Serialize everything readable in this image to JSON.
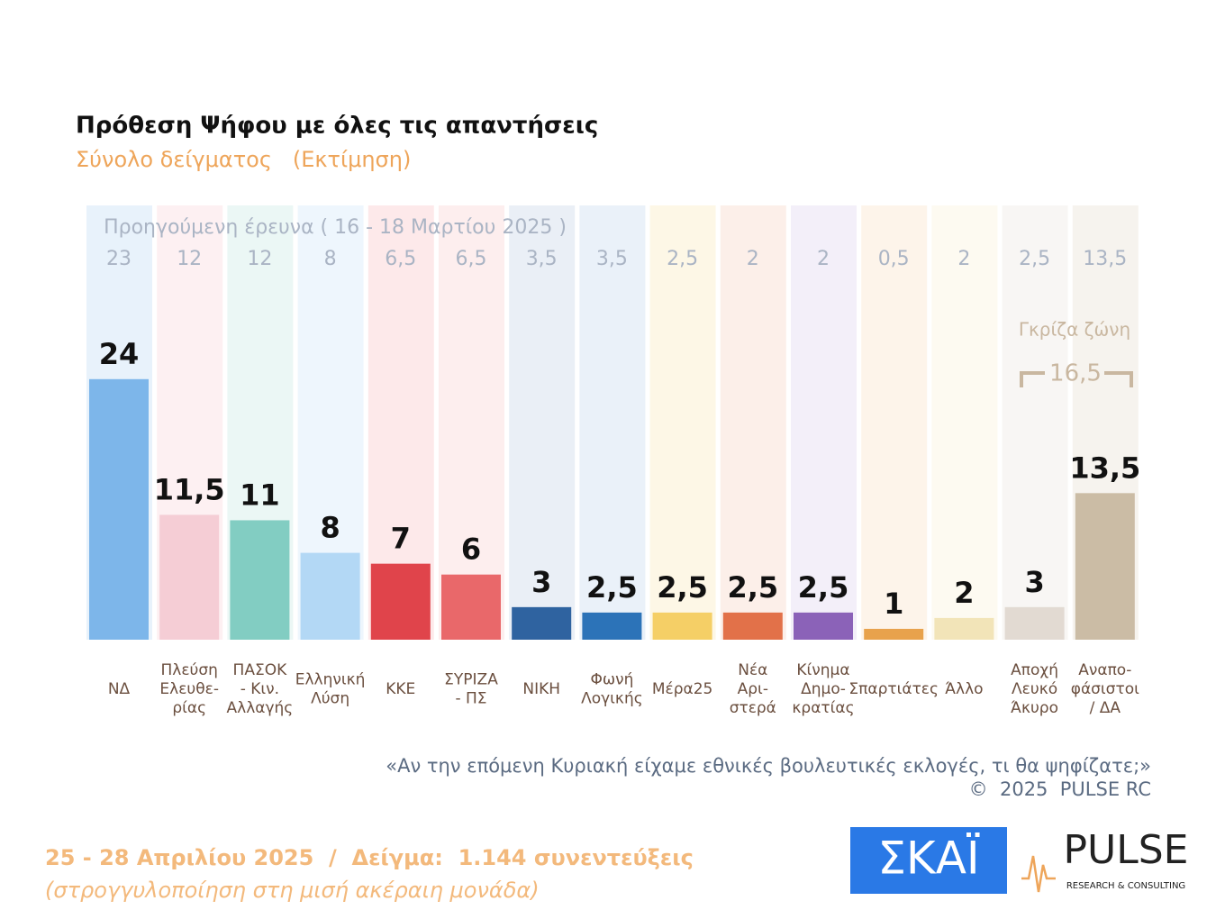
{
  "chart_data": {
    "type": "bar",
    "title": "Πρόθεση Ψήφου με όλες τις απαντήσεις",
    "subtitle": "Σύνολο δείγματος   (Εκτίμηση)",
    "categories": [
      [
        "ΝΔ"
      ],
      [
        "Πλεύση",
        "Ελευθε-",
        "ρίας"
      ],
      [
        "ΠΑΣΟΚ",
        "- Κιν.",
        "Αλλαγής"
      ],
      [
        "Ελληνική",
        "Λύση"
      ],
      [
        "ΚΚΕ"
      ],
      [
        "ΣΥΡΙΖΑ",
        "- ΠΣ"
      ],
      [
        "ΝΙΚΗ"
      ],
      [
        "Φωνή",
        "Λογικής"
      ],
      [
        "Μέρα25"
      ],
      [
        "Νέα",
        "Αρι-",
        "στερά"
      ],
      [
        "Κίνημα",
        "Δημο-",
        "κρατίας"
      ],
      [
        "Σπαρτιάτες"
      ],
      [
        "Άλλο"
      ],
      [
        "Αποχή",
        "Λευκό",
        "Άκυρο"
      ],
      [
        "Αναπο-",
        "φάσιστοι",
        "/ ΔΑ"
      ]
    ],
    "values": [
      24,
      11.5,
      11,
      8,
      7,
      6,
      3,
      2.5,
      2.5,
      2.5,
      2.5,
      1,
      2,
      3,
      13.5
    ],
    "value_labels": [
      "24",
      "11,5",
      "11",
      "8",
      "7",
      "6",
      "3",
      "2,5",
      "2,5",
      "2,5",
      "2,5",
      "1",
      "2",
      "3",
      "13,5"
    ],
    "colors": [
      "#7db6ea",
      "#f5cdd5",
      "#82cdc2",
      "#b3d8f5",
      "#e0444b",
      "#e9686a",
      "#2f63a0",
      "#2c73b8",
      "#f5cf66",
      "#e27149",
      "#8b62b8",
      "#e8a24c",
      "#f2e4b8",
      "#e2dad2",
      "#cbbca5"
    ],
    "backgrounds": [
      "#e8f2fb",
      "#fdf0f2",
      "#ebf7f5",
      "#eef6fd",
      "#fde9ea",
      "#fdeeee",
      "#eaeff6",
      "#eaf1f9",
      "#fdf7e6",
      "#fcefe9",
      "#f3eff9",
      "#fdf4ea",
      "#fdfaf1",
      "#f8f6f4",
      "#f6f3ee"
    ],
    "previous": {
      "name": "Προηγούμενη έρευνα ( 16 - 18 Μαρτίου 2025 )",
      "values": [
        23,
        12,
        12,
        8,
        6.5,
        6.5,
        3.5,
        3.5,
        2.5,
        2,
        2,
        0.5,
        2,
        2.5,
        13.5
      ],
      "value_labels": [
        "23",
        "12",
        "12",
        "8",
        "6,5",
        "6,5",
        "3,5",
        "3,5",
        "2,5",
        "2",
        "2",
        "0,5",
        "2",
        "2,5",
        "13,5"
      ]
    },
    "grey_zone": {
      "label": "Γκρίζα ζώνη",
      "value": 16.5,
      "value_label": "16,5"
    },
    "ylim": [
      0,
      40
    ],
    "question": "«Αν την επόμενη Κυριακή είχαμε εθνικές βουλευτικές εκλογές, τι θα ψηφίζατε;»",
    "copyright": "©  2025  PULSE RC",
    "footer": "25 - 28 Απριλίου 2025  /  Δείγμα:  1.144 συνεντεύξεις",
    "note": "(στρογγυλοποίηση στη μισή ακέραιη μονάδα)",
    "logos": {
      "skai": "ΣΚΑΪ",
      "pulse": "PULSE",
      "pulse_sub": "RESEARCH & CONSULTING"
    }
  }
}
